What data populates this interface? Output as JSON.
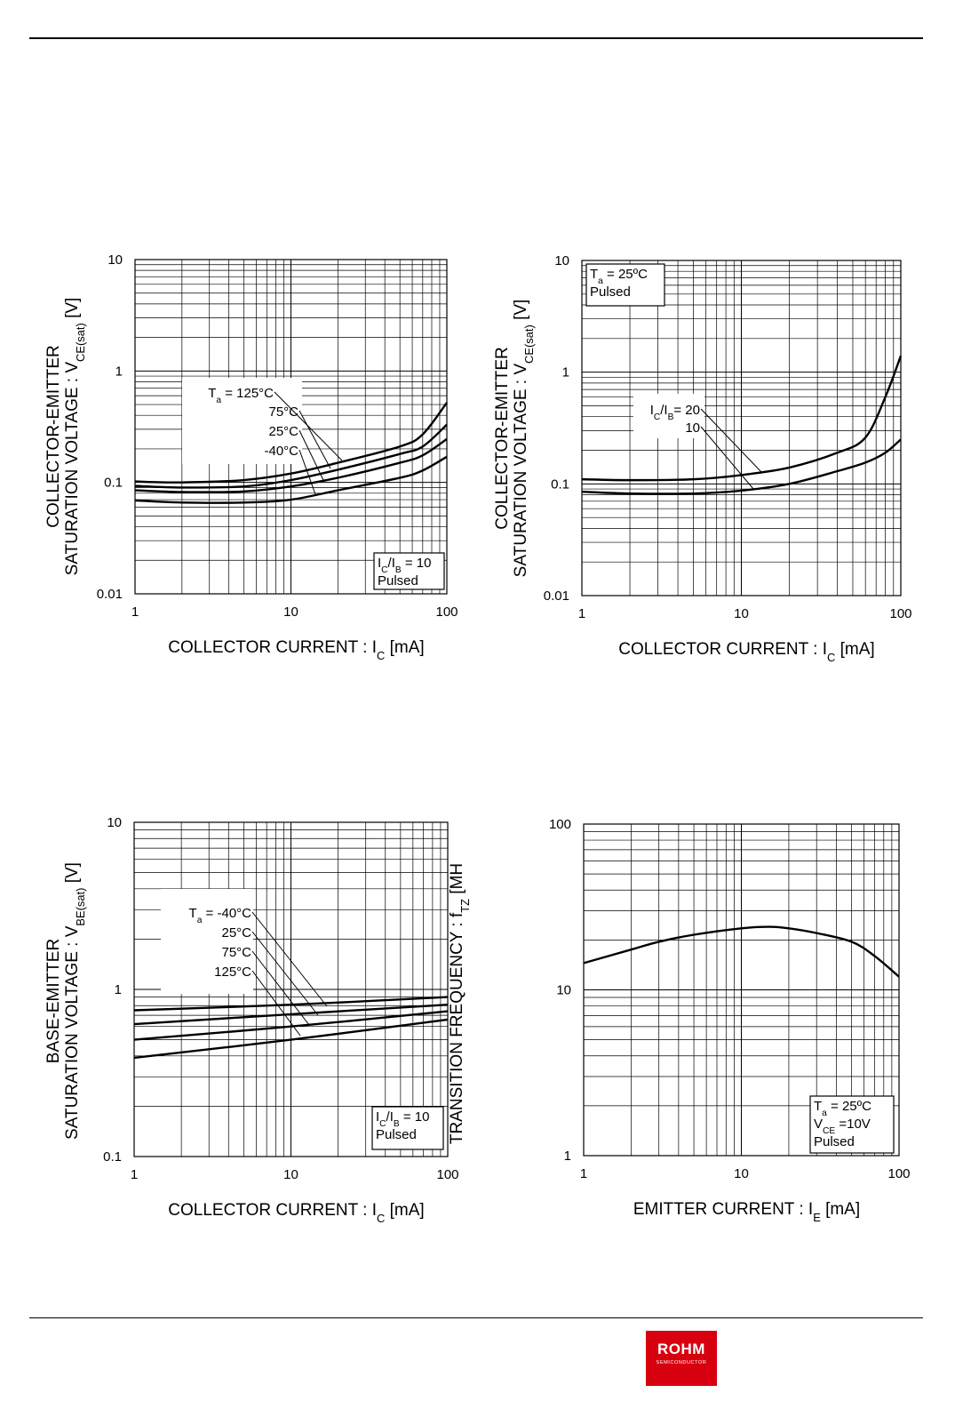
{
  "logo": {
    "name": "ROHM",
    "sub": "SEMICONDUCTOR",
    "color": "#d7000f"
  },
  "chart_data": [
    {
      "type": "line",
      "id": "vcesat-temp",
      "x_scale": "log",
      "y_scale": "log",
      "xlim": [
        1,
        100
      ],
      "ylim": [
        0.01,
        10
      ],
      "x_ticks": [
        "1",
        "10",
        "100"
      ],
      "y_ticks": [
        "0.01",
        "0.1",
        "1",
        "10"
      ],
      "xlabel": {
        "pre": "COLLECTOR CURRENT : I",
        "sub": "C",
        "post": " [mA]"
      },
      "ylabel_line1": "COLLECTOR-EMITTER",
      "ylabel_line2": {
        "pre": "SATURATION VOLTAGE : V",
        "sub": "CE(sat)",
        "post": " [V]"
      },
      "legend_box": {
        "lines": [
          {
            "pre": "I",
            "sub": "C",
            "mid": "/I",
            "sub2": "B",
            "post": " = 10"
          },
          {
            "pre": "Pulsed"
          }
        ],
        "position": "bottom-right"
      },
      "series_labels": [
        {
          "pre": "T",
          "sub": "a",
          "post": " = 125°C"
        },
        {
          "pre": "75°C"
        },
        {
          "pre": "25°C"
        },
        {
          "pre": "-40°C"
        }
      ],
      "series": [
        {
          "name": "Ta = 125°C",
          "x": [
            1,
            2,
            5,
            10,
            20,
            50,
            70,
            100
          ],
          "y": [
            0.102,
            0.1,
            0.105,
            0.12,
            0.15,
            0.21,
            0.27,
            0.52
          ]
        },
        {
          "name": "75°C",
          "x": [
            1,
            2,
            5,
            10,
            20,
            50,
            70,
            100
          ],
          "y": [
            0.093,
            0.09,
            0.092,
            0.105,
            0.13,
            0.18,
            0.21,
            0.33
          ]
        },
        {
          "name": "25°C",
          "x": [
            1,
            2,
            5,
            10,
            20,
            50,
            70,
            100
          ],
          "y": [
            0.085,
            0.082,
            0.083,
            0.092,
            0.11,
            0.15,
            0.175,
            0.245
          ]
        },
        {
          "name": "-40°C",
          "x": [
            1,
            2,
            5,
            10,
            20,
            50,
            70,
            100
          ],
          "y": [
            0.069,
            0.066,
            0.066,
            0.07,
            0.085,
            0.11,
            0.128,
            0.17
          ]
        }
      ]
    },
    {
      "type": "line",
      "id": "vcesat-ratio",
      "x_scale": "log",
      "y_scale": "log",
      "xlim": [
        1,
        100
      ],
      "ylim": [
        0.01,
        10
      ],
      "x_ticks": [
        "1",
        "10",
        "100"
      ],
      "y_ticks": [
        "0.01",
        "0.1",
        "1",
        "10"
      ],
      "xlabel": {
        "pre": "COLLECTOR CURRENT : I",
        "sub": "C",
        "post": " [mA]"
      },
      "ylabel_line1": "COLLECTOR-EMITTER",
      "ylabel_line2": {
        "pre": "SATURATION VOLTAGE : V",
        "sub": "CE(sat)",
        "post": " [V]"
      },
      "legend_box": {
        "lines": [
          {
            "pre": "T",
            "sub": "a",
            "post": " = 25ºC"
          },
          {
            "pre": "Pulsed"
          }
        ],
        "position": "top-left"
      },
      "series_labels": [
        {
          "pre": "I",
          "sub": "C",
          "mid": "/I",
          "sub2": "B",
          "post": "= 20"
        },
        {
          "pre": "10"
        }
      ],
      "series": [
        {
          "name": "IC/IB = 20",
          "x": [
            1,
            2,
            5,
            10,
            20,
            40,
            60,
            80,
            100
          ],
          "y": [
            0.11,
            0.108,
            0.11,
            0.12,
            0.14,
            0.19,
            0.26,
            0.6,
            1.4
          ]
        },
        {
          "name": "10",
          "x": [
            1,
            2,
            5,
            10,
            20,
            40,
            60,
            80,
            100
          ],
          "y": [
            0.085,
            0.082,
            0.082,
            0.087,
            0.1,
            0.13,
            0.155,
            0.19,
            0.25
          ]
        }
      ]
    },
    {
      "type": "line",
      "id": "vbesat-temp",
      "x_scale": "log",
      "y_scale": "log",
      "xlim": [
        1,
        100
      ],
      "ylim": [
        0.1,
        10
      ],
      "x_ticks": [
        "1",
        "10",
        "100"
      ],
      "y_ticks": [
        "0.1",
        "1",
        "10"
      ],
      "xlabel": {
        "pre": "COLLECTOR CURRENT : I",
        "sub": "C",
        "post": " [mA]"
      },
      "ylabel_line1": "BASE-EMITTER",
      "ylabel_line2": {
        "pre": "SATURATION VOLTAGE : V",
        "sub": "BE(sat)",
        "post": " [V]"
      },
      "legend_box": {
        "lines": [
          {
            "pre": "I",
            "sub": "C",
            "mid": "/I",
            "sub2": "B",
            "post": " = 10"
          },
          {
            "pre": "Pulsed"
          }
        ],
        "position": "bottom-right"
      },
      "series_labels": [
        {
          "pre": "T",
          "sub": "a",
          "post": " = -40°C"
        },
        {
          "pre": "25°C"
        },
        {
          "pre": "75°C"
        },
        {
          "pre": "125°C"
        }
      ],
      "series": [
        {
          "name": "Ta = -40°C",
          "x": [
            1,
            10,
            100
          ],
          "y": [
            0.75,
            0.81,
            0.9
          ]
        },
        {
          "name": "25°C",
          "x": [
            1,
            10,
            100
          ],
          "y": [
            0.62,
            0.71,
            0.81
          ]
        },
        {
          "name": "75°C",
          "x": [
            1,
            10,
            100
          ],
          "y": [
            0.5,
            0.6,
            0.74
          ]
        },
        {
          "name": "125°C",
          "x": [
            1,
            10,
            100
          ],
          "y": [
            0.39,
            0.5,
            0.66
          ]
        }
      ]
    },
    {
      "type": "line",
      "id": "ft",
      "x_scale": "log",
      "y_scale": "log",
      "xlim": [
        1,
        100
      ],
      "ylim": [
        1,
        100
      ],
      "x_ticks": [
        "1",
        "10",
        "100"
      ],
      "y_ticks": [
        "1",
        "10",
        "100"
      ],
      "xlabel": {
        "pre": "EMITTER CURRENT : I",
        "sub": "E",
        "post": " [mA]"
      },
      "ylabel_line1": "",
      "ylabel_line2": {
        "pre": "TRANSITION FREQUENCY : f",
        "sub": "T",
        "post": " [MH",
        "sub2": "Z",
        "post2": "]"
      },
      "legend_box": {
        "lines": [
          {
            "pre": "T",
            "sub": "a",
            "post": " = 25ºC"
          },
          {
            "pre": "V",
            "sub": "CE",
            "post": " =10V"
          },
          {
            "pre": "Pulsed"
          }
        ],
        "position": "bottom-right"
      },
      "series_labels": [],
      "series": [
        {
          "name": "fT",
          "x": [
            1,
            2,
            3,
            5,
            10,
            15,
            20,
            30,
            50,
            70,
            100
          ],
          "y": [
            14.5,
            17.5,
            19.5,
            21.5,
            23.5,
            24,
            23.5,
            22,
            19.5,
            16,
            12
          ]
        }
      ]
    }
  ]
}
